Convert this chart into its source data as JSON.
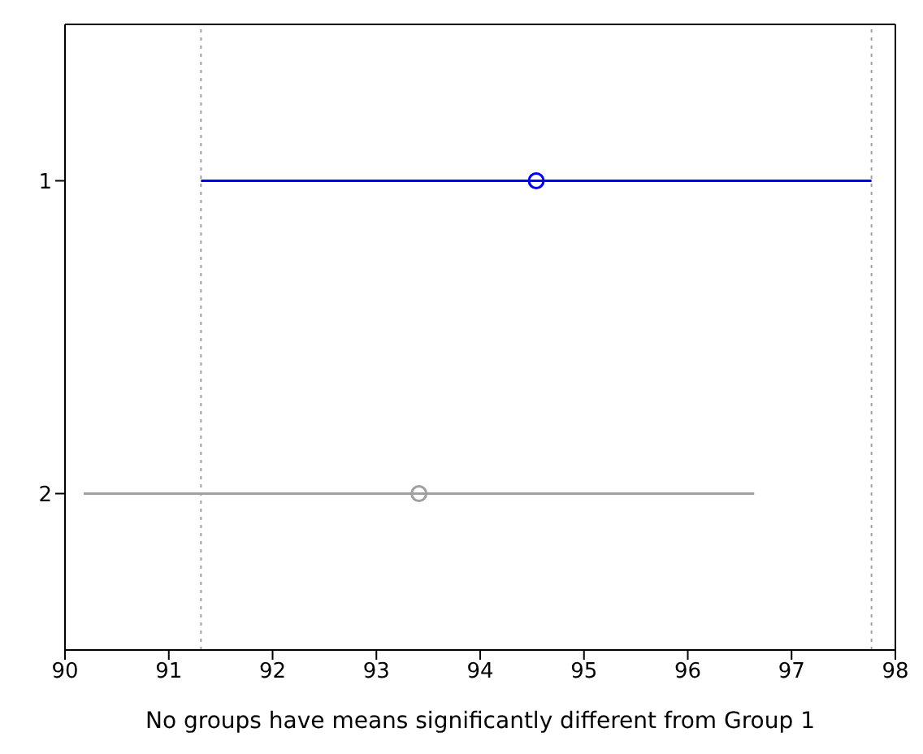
{
  "chart_data": {
    "type": "scatter",
    "orientation": "horizontal",
    "xlabel": "No groups have means significantly different from Group 1",
    "categories": [
      "1",
      "2"
    ],
    "values": [
      94.54,
      93.41
    ],
    "errors": [
      [
        91.31,
        97.77
      ],
      [
        90.18,
        96.64
      ]
    ],
    "colors": [
      "#0000ff",
      "#a0a0a0"
    ],
    "marker": "circle",
    "xlim": [
      90,
      98
    ],
    "xticks": [
      90,
      91,
      92,
      93,
      94,
      95,
      96,
      97,
      98
    ],
    "ref_lines": [
      {
        "axis": "x",
        "value": 91.31,
        "color": "#a0a0a0",
        "line_style": "dotted"
      },
      {
        "axis": "x",
        "value": 97.77,
        "color": "#a0a0a0",
        "line_style": "dotted"
      }
    ],
    "grid": false,
    "legend": false
  }
}
